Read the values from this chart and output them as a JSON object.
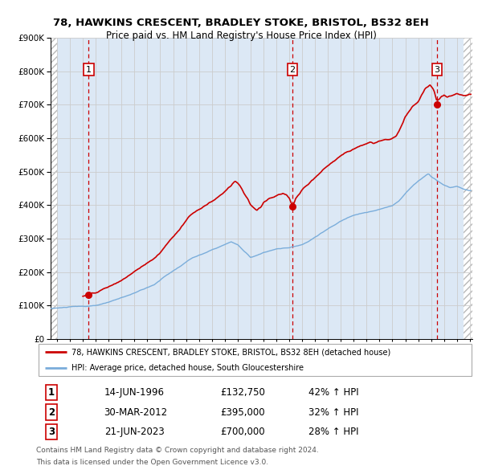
{
  "title": "78, HAWKINS CRESCENT, BRADLEY STOKE, BRISTOL, BS32 8EH",
  "subtitle": "Price paid vs. HM Land Registry's House Price Index (HPI)",
  "legend_line1": "78, HAWKINS CRESCENT, BRADLEY STOKE, BRISTOL, BS32 8EH (detached house)",
  "legend_line2": "HPI: Average price, detached house, South Gloucestershire",
  "transactions": [
    {
      "num": 1,
      "date": "14-JUN-1996",
      "price": 132750,
      "pct": "42%",
      "year": 1996.45
    },
    {
      "num": 2,
      "date": "30-MAR-2012",
      "price": 395000,
      "pct": "32%",
      "year": 2012.25
    },
    {
      "num": 3,
      "date": "21-JUN-2023",
      "price": 700000,
      "pct": "28%",
      "year": 2023.47
    }
  ],
  "footer1": "Contains HM Land Registry data © Crown copyright and database right 2024.",
  "footer2": "This data is licensed under the Open Government Licence v3.0.",
  "red_color": "#cc0000",
  "blue_color": "#7aaddb",
  "grid_color": "#cccccc",
  "bg_color": "#dce8f5",
  "hatch_color": "#c8c8c8",
  "ylim": [
    0,
    900000
  ],
  "xlim_start": 1993.5,
  "xlim_end": 2026.2,
  "hatch_left_end": 1994.0,
  "hatch_right_start": 2025.5
}
